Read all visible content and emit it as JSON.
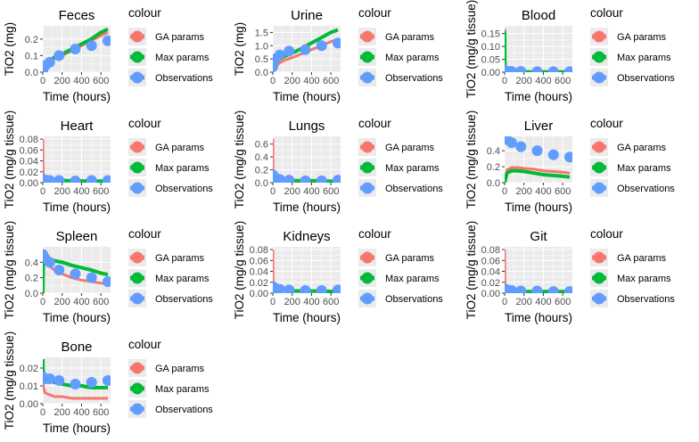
{
  "legend": {
    "title": "colour",
    "entries": [
      {
        "label": "GA params",
        "color": "#F8766D"
      },
      {
        "label": "Max params",
        "color": "#00BA38"
      },
      {
        "label": "Observations",
        "color": "#619CFF"
      }
    ]
  },
  "chart_data": [
    {
      "type": "line",
      "title": "Feces",
      "xlabel": "Time (hours)",
      "ylabel": "TiO2 (mg)",
      "xlim": [
        0,
        700
      ],
      "ylim": [
        0,
        0.28
      ],
      "xticks": [
        0,
        200,
        400,
        600
      ],
      "xtick_labels": [
        "0",
        "200",
        "400",
        "600"
      ],
      "yticks": [
        0,
        0.1,
        0.2
      ],
      "ytick_labels": [
        "0.0",
        "0.1",
        "0.2"
      ],
      "grid": true,
      "legend_position": "right",
      "series": [
        {
          "name": "GA params",
          "x": [
            0,
            24,
            72,
            120,
            200,
            300,
            400,
            500,
            600,
            672
          ],
          "y": [
            0,
            0.03,
            0.06,
            0.08,
            0.1,
            0.13,
            0.16,
            0.19,
            0.22,
            0.24
          ]
        },
        {
          "name": "Max params",
          "x": [
            0,
            24,
            72,
            120,
            200,
            300,
            400,
            500,
            600,
            672
          ],
          "y": [
            0,
            0.035,
            0.07,
            0.09,
            0.11,
            0.14,
            0.17,
            0.2,
            0.24,
            0.26
          ]
        },
        {
          "name": "Observations",
          "x": [
            0,
            24,
            72,
            168,
            336,
            504,
            672
          ],
          "y": [
            0.01,
            0.04,
            0.06,
            0.1,
            0.14,
            0.16,
            0.19
          ]
        }
      ]
    },
    {
      "type": "line",
      "title": "Urine",
      "xlabel": "Time (hours)",
      "ylabel": "TiO2 (mg)",
      "xlim": [
        0,
        700
      ],
      "ylim": [
        0,
        1.75
      ],
      "xticks": [
        0,
        200,
        400,
        600
      ],
      "xtick_labels": [
        "0",
        "200",
        "400",
        "600"
      ],
      "yticks": [
        0,
        0.5,
        1.0,
        1.5
      ],
      "ytick_labels": [
        "0.0",
        "0.5",
        "1.0",
        "1.5"
      ],
      "grid": true,
      "legend_position": "right",
      "series": [
        {
          "name": "GA params",
          "x": [
            0,
            24,
            72,
            120,
            200,
            300,
            400,
            500,
            600,
            672
          ],
          "y": [
            0,
            0.2,
            0.35,
            0.45,
            0.55,
            0.7,
            0.85,
            1.0,
            1.15,
            1.25
          ]
        },
        {
          "name": "Max params",
          "x": [
            0,
            24,
            72,
            120,
            200,
            300,
            400,
            500,
            600,
            672
          ],
          "y": [
            0,
            0.3,
            0.5,
            0.6,
            0.72,
            0.9,
            1.1,
            1.3,
            1.5,
            1.6
          ]
        },
        {
          "name": "Observations",
          "x": [
            0,
            24,
            72,
            168,
            336,
            504,
            672
          ],
          "y": [
            0.2,
            0.5,
            0.65,
            0.8,
            0.85,
            1.0,
            1.1
          ]
        }
      ]
    },
    {
      "type": "line",
      "title": "Blood",
      "xlabel": "Time (hours)",
      "ylabel": "TiO2 (mg/g tissue)",
      "xlim": [
        0,
        700
      ],
      "ylim": [
        0,
        0.18
      ],
      "xticks": [
        0,
        200,
        400,
        600
      ],
      "xtick_labels": [
        "0",
        "200",
        "400",
        "600"
      ],
      "yticks": [
        0,
        0.05,
        0.1,
        0.15
      ],
      "ytick_labels": [
        "0.00",
        "0.05",
        "0.10",
        "0.15"
      ],
      "grid": true,
      "legend_position": "right",
      "series": [
        {
          "name": "GA params",
          "x": [
            0,
            2,
            6,
            24,
            72,
            200,
            400,
            672
          ],
          "y": [
            0.17,
            0.05,
            0.01,
            0.003,
            0.002,
            0.002,
            0.001,
            0.001
          ]
        },
        {
          "name": "Max params",
          "x": [
            0,
            2,
            6,
            24,
            72,
            200,
            400,
            672
          ],
          "y": [
            0.16,
            0.04,
            0.008,
            0.002,
            0.001,
            0.001,
            0.001,
            0.001
          ]
        },
        {
          "name": "Observations",
          "x": [
            1,
            24,
            72,
            168,
            336,
            504,
            672
          ],
          "y": [
            0.008,
            0.004,
            0.003,
            0.003,
            0.002,
            0.002,
            0.002
          ]
        }
      ]
    },
    {
      "type": "line",
      "title": "Heart",
      "xlabel": "Time (hours)",
      "ylabel": "TiO2 (mg/g tissue)",
      "xlim": [
        0,
        700
      ],
      "ylim": [
        0,
        0.085
      ],
      "xticks": [
        0,
        200,
        400,
        600
      ],
      "xtick_labels": [
        "0",
        "200",
        "400",
        "600"
      ],
      "yticks": [
        0,
        0.02,
        0.04,
        0.06,
        0.08
      ],
      "ytick_labels": [
        "0.00",
        "0.02",
        "0.04",
        "0.06",
        "0.08"
      ],
      "grid": true,
      "legend_position": "right",
      "series": [
        {
          "name": "GA params",
          "x": [
            0,
            2,
            6,
            24,
            72,
            200,
            400,
            672
          ],
          "y": [
            0.08,
            0.03,
            0.01,
            0.006,
            0.005,
            0.004,
            0.004,
            0.003
          ]
        },
        {
          "name": "Max params",
          "x": [
            0,
            2,
            6,
            24,
            72,
            200,
            400,
            672
          ],
          "y": [
            0.002,
            0.004,
            0.005,
            0.005,
            0.004,
            0.004,
            0.003,
            0.003
          ]
        },
        {
          "name": "Observations",
          "x": [
            1,
            24,
            72,
            168,
            336,
            504,
            672
          ],
          "y": [
            0.006,
            0.005,
            0.004,
            0.004,
            0.003,
            0.004,
            0.004
          ]
        }
      ]
    },
    {
      "type": "line",
      "title": "Lungs",
      "xlabel": "Time (hours)",
      "ylabel": "TiO2 (mg/g tissue)",
      "xlim": [
        0,
        700
      ],
      "ylim": [
        0,
        0.72
      ],
      "xticks": [
        0,
        200,
        400,
        600
      ],
      "xtick_labels": [
        "0",
        "200",
        "400",
        "600"
      ],
      "yticks": [
        0,
        0.2,
        0.4,
        0.6
      ],
      "ytick_labels": [
        "0.0",
        "0.2",
        "0.4",
        "0.6"
      ],
      "grid": true,
      "legend_position": "right",
      "series": [
        {
          "name": "GA params",
          "x": [
            0,
            2,
            6,
            24,
            72,
            200,
            400,
            672
          ],
          "y": [
            0.68,
            0.25,
            0.08,
            0.04,
            0.03,
            0.02,
            0.02,
            0.02
          ]
        },
        {
          "name": "Max params",
          "x": [
            0,
            2,
            6,
            24,
            72,
            200,
            400,
            672
          ],
          "y": [
            0.02,
            0.05,
            0.06,
            0.05,
            0.04,
            0.03,
            0.03,
            0.02
          ]
        },
        {
          "name": "Observations",
          "x": [
            1,
            24,
            72,
            168,
            336,
            504,
            672
          ],
          "y": [
            0.12,
            0.08,
            0.05,
            0.04,
            0.03,
            0.03,
            0.04
          ]
        }
      ]
    },
    {
      "type": "line",
      "title": "Liver",
      "xlabel": "Time (hours)",
      "ylabel": "TiO2 (mg/g tissue)",
      "xlim": [
        0,
        700
      ],
      "ylim": [
        0,
        0.58
      ],
      "xticks": [
        0,
        200,
        400,
        600
      ],
      "xtick_labels": [
        "0",
        "200",
        "400",
        "600"
      ],
      "yticks": [
        0,
        0.2,
        0.4
      ],
      "ytick_labels": [
        "0.0",
        "0.2",
        "0.4"
      ],
      "grid": true,
      "legend_position": "right",
      "series": [
        {
          "name": "GA params",
          "x": [
            0,
            24,
            72,
            120,
            200,
            300,
            400,
            500,
            600,
            672
          ],
          "y": [
            0,
            0.16,
            0.19,
            0.19,
            0.18,
            0.17,
            0.15,
            0.14,
            0.13,
            0.12
          ]
        },
        {
          "name": "Max params",
          "x": [
            0,
            24,
            72,
            120,
            200,
            300,
            400,
            500,
            600,
            672
          ],
          "y": [
            0,
            0.12,
            0.15,
            0.15,
            0.14,
            0.12,
            0.1,
            0.09,
            0.08,
            0.07
          ]
        },
        {
          "name": "Observations",
          "x": [
            1,
            24,
            72,
            168,
            336,
            504,
            672
          ],
          "y": [
            0.55,
            0.54,
            0.5,
            0.45,
            0.4,
            0.35,
            0.32
          ]
        }
      ]
    },
    {
      "type": "line",
      "title": "Spleen",
      "xlabel": "Time (hours)",
      "ylabel": "TiO2 (mg/g tissue)",
      "xlim": [
        0,
        700
      ],
      "ylim": [
        0,
        0.6
      ],
      "xticks": [
        0,
        200,
        400,
        600
      ],
      "xtick_labels": [
        "0",
        "200",
        "400",
        "600"
      ],
      "yticks": [
        0,
        0.2,
        0.4
      ],
      "ytick_labels": [
        "0.0",
        "0.2",
        "0.4"
      ],
      "grid": true,
      "legend_position": "right",
      "series": [
        {
          "name": "GA params",
          "x": [
            0,
            6,
            24,
            72,
            120,
            200,
            300,
            400,
            500,
            600,
            672
          ],
          "y": [
            0,
            0.5,
            0.42,
            0.35,
            0.3,
            0.25,
            0.2,
            0.17,
            0.15,
            0.13,
            0.12
          ]
        },
        {
          "name": "Max params",
          "x": [
            0,
            6,
            24,
            72,
            120,
            200,
            300,
            400,
            500,
            600,
            672
          ],
          "y": [
            0,
            0.48,
            0.46,
            0.44,
            0.42,
            0.4,
            0.36,
            0.33,
            0.3,
            0.26,
            0.24
          ]
        },
        {
          "name": "Observations",
          "x": [
            1,
            24,
            72,
            168,
            336,
            504,
            672
          ],
          "y": [
            0.5,
            0.45,
            0.4,
            0.3,
            0.25,
            0.2,
            0.15
          ]
        }
      ]
    },
    {
      "type": "line",
      "title": "Kidneys",
      "xlabel": "Time (hours)",
      "ylabel": "TiO2 (mg/g tissue)",
      "xlim": [
        0,
        700
      ],
      "ylim": [
        0,
        0.085
      ],
      "xticks": [
        0,
        200,
        400,
        600
      ],
      "xtick_labels": [
        "0",
        "200",
        "400",
        "600"
      ],
      "yticks": [
        0,
        0.02,
        0.04,
        0.06,
        0.08
      ],
      "ytick_labels": [
        "0.00",
        "0.02",
        "0.04",
        "0.06",
        "0.08"
      ],
      "grid": true,
      "legend_position": "right",
      "series": [
        {
          "name": "GA params",
          "x": [
            0,
            2,
            6,
            24,
            72,
            200,
            400,
            672
          ],
          "y": [
            0.08,
            0.03,
            0.012,
            0.007,
            0.006,
            0.005,
            0.004,
            0.004
          ]
        },
        {
          "name": "Max params",
          "x": [
            0,
            2,
            6,
            24,
            72,
            200,
            400,
            672
          ],
          "y": [
            0.002,
            0.004,
            0.005,
            0.005,
            0.005,
            0.004,
            0.004,
            0.003
          ]
        },
        {
          "name": "Observations",
          "x": [
            1,
            24,
            72,
            168,
            336,
            504,
            672
          ],
          "y": [
            0.012,
            0.009,
            0.007,
            0.006,
            0.005,
            0.005,
            0.006
          ]
        }
      ]
    },
    {
      "type": "line",
      "title": "Git",
      "xlabel": "Time (hours)",
      "ylabel": "TiO2 (mg/g tissue)",
      "xlim": [
        0,
        700
      ],
      "ylim": [
        0,
        0.085
      ],
      "xticks": [
        0,
        200,
        400,
        600
      ],
      "xtick_labels": [
        "0",
        "200",
        "400",
        "600"
      ],
      "yticks": [
        0,
        0.02,
        0.04,
        0.06,
        0.08
      ],
      "ytick_labels": [
        "0.00",
        "0.02",
        "0.04",
        "0.06",
        "0.08"
      ],
      "grid": true,
      "legend_position": "right",
      "series": [
        {
          "name": "GA params",
          "x": [
            0,
            2,
            6,
            24,
            72,
            200,
            400,
            672
          ],
          "y": [
            0.08,
            0.03,
            0.01,
            0.005,
            0.004,
            0.003,
            0.003,
            0.003
          ]
        },
        {
          "name": "Max params",
          "x": [
            0,
            2,
            6,
            24,
            72,
            200,
            400,
            672
          ],
          "y": [
            0.002,
            0.003,
            0.004,
            0.004,
            0.004,
            0.003,
            0.003,
            0.003
          ]
        },
        {
          "name": "Observations",
          "x": [
            1,
            24,
            72,
            168,
            336,
            504,
            672
          ],
          "y": [
            0.008,
            0.006,
            0.005,
            0.004,
            0.004,
            0.003,
            0.003
          ]
        }
      ]
    },
    {
      "type": "line",
      "title": "Bone",
      "xlabel": "Time (hours)",
      "ylabel": "TiO2 (mg/g tissue)",
      "xlim": [
        0,
        700
      ],
      "ylim": [
        0,
        0.026
      ],
      "xticks": [
        0,
        200,
        400,
        600
      ],
      "xtick_labels": [
        "0",
        "200",
        "400",
        "600"
      ],
      "yticks": [
        0,
        0.01,
        0.02
      ],
      "ytick_labels": [
        "0.00",
        "0.01",
        "0.02"
      ],
      "grid": true,
      "legend_position": "right",
      "series": [
        {
          "name": "GA params",
          "x": [
            0,
            2,
            6,
            24,
            72,
            120,
            200,
            300,
            400,
            672
          ],
          "y": [
            0.015,
            0.012,
            0.009,
            0.006,
            0.005,
            0.004,
            0.004,
            0.003,
            0.003,
            0.003
          ]
        },
        {
          "name": "Max params",
          "x": [
            0,
            2,
            6,
            24,
            72,
            120,
            200,
            300,
            400,
            500,
            672
          ],
          "y": [
            0.025,
            0.02,
            0.017,
            0.015,
            0.013,
            0.012,
            0.011,
            0.01,
            0.01,
            0.009,
            0.009
          ]
        },
        {
          "name": "Observations",
          "x": [
            1,
            24,
            72,
            168,
            336,
            504,
            672
          ],
          "y": [
            0.015,
            0.014,
            0.014,
            0.013,
            0.011,
            0.012,
            0.013
          ]
        }
      ]
    }
  ]
}
